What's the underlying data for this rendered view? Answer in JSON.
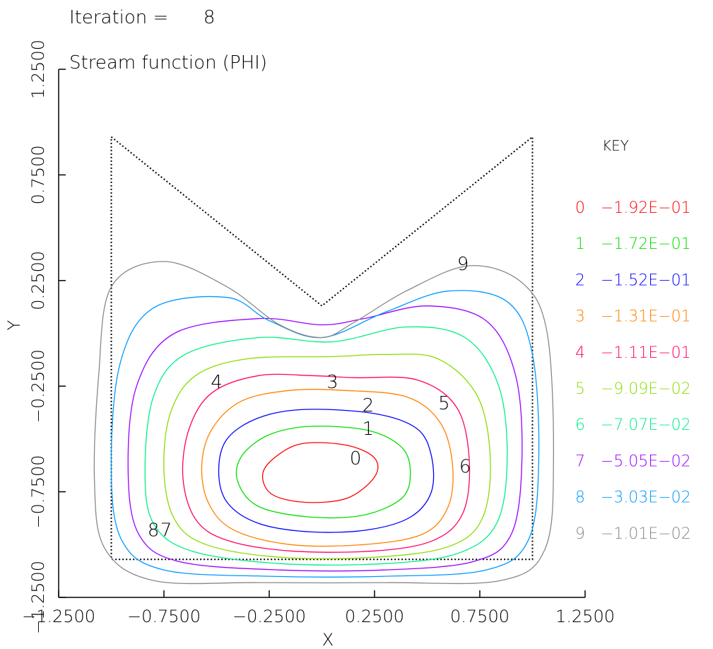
{
  "chart_data": {
    "type": "contour",
    "title": "Iteration =      8",
    "subtitle": "Stream function (PHI)",
    "xlabel": "X",
    "ylabel": "Y",
    "xlim": [
      -1.25,
      1.25
    ],
    "ylim": [
      -1.25,
      1.25
    ],
    "x_ticks": [
      "-1.2500",
      "-0.7500",
      "-0.2500",
      "0.2500",
      "0.7500",
      "1.2500"
    ],
    "y_ticks": [
      "-1.2500",
      "-0.7500",
      "-0.2500",
      "0.2500",
      "0.7500",
      "1.2500"
    ],
    "grid": false,
    "legend_position": "right",
    "key_title": "KEY",
    "boundary": [
      [
        -1.0,
        0.93
      ],
      [
        0.0,
        0.13
      ],
      [
        1.0,
        0.93
      ],
      [
        1.0,
        -1.07
      ],
      [
        -1.0,
        -1.07
      ],
      [
        -1.0,
        0.93
      ]
    ],
    "levels": [
      {
        "label": "0",
        "value": "-1.92E-01",
        "color": "#ff0000"
      },
      {
        "label": "1",
        "value": "-1.72E-01",
        "color": "#00dd00"
      },
      {
        "label": "2",
        "value": "-1.52E-01",
        "color": "#0000ff"
      },
      {
        "label": "3",
        "value": "-1.31E-01",
        "color": "#ff8000"
      },
      {
        "label": "4",
        "value": "-1.11E-01",
        "color": "#ff0066"
      },
      {
        "label": "5",
        "value": "-9.09E-02",
        "color": "#88dd00"
      },
      {
        "label": "6",
        "value": "-7.07E-02",
        "color": "#00ee88"
      },
      {
        "label": "7",
        "value": "-5.05E-02",
        "color": "#9900ff"
      },
      {
        "label": "8",
        "value": "-3.03E-02",
        "color": "#0099ff"
      },
      {
        "label": "9",
        "value": "-1.01E-02",
        "color": "#888888"
      }
    ],
    "contours": [
      {
        "level": "0",
        "points": [
          [
            -0.08,
            -0.52
          ],
          [
            -0.2,
            -0.57
          ],
          [
            -0.28,
            -0.66
          ],
          [
            -0.24,
            -0.76
          ],
          [
            -0.08,
            -0.8
          ],
          [
            0.12,
            -0.78
          ],
          [
            0.25,
            -0.68
          ],
          [
            0.25,
            -0.59
          ],
          [
            0.12,
            -0.53
          ],
          [
            -0.08,
            -0.52
          ]
        ]
      },
      {
        "level": "1",
        "points": [
          [
            -0.05,
            -0.44
          ],
          [
            -0.25,
            -0.48
          ],
          [
            -0.38,
            -0.58
          ],
          [
            -0.4,
            -0.7
          ],
          [
            -0.3,
            -0.82
          ],
          [
            -0.05,
            -0.87
          ],
          [
            0.2,
            -0.86
          ],
          [
            0.38,
            -0.78
          ],
          [
            0.42,
            -0.66
          ],
          [
            0.38,
            -0.54
          ],
          [
            0.22,
            -0.46
          ],
          [
            -0.05,
            -0.44
          ]
        ]
      },
      {
        "level": "2",
        "points": [
          [
            -0.08,
            -0.36
          ],
          [
            -0.3,
            -0.4
          ],
          [
            -0.45,
            -0.5
          ],
          [
            -0.49,
            -0.65
          ],
          [
            -0.45,
            -0.8
          ],
          [
            -0.3,
            -0.9
          ],
          [
            -0.05,
            -0.94
          ],
          [
            0.22,
            -0.93
          ],
          [
            0.42,
            -0.87
          ],
          [
            0.52,
            -0.75
          ],
          [
            0.52,
            -0.58
          ],
          [
            0.45,
            -0.45
          ],
          [
            0.25,
            -0.38
          ],
          [
            -0.08,
            -0.36
          ]
        ]
      },
      {
        "level": "3",
        "points": [
          [
            -0.15,
            -0.27
          ],
          [
            -0.38,
            -0.32
          ],
          [
            -0.52,
            -0.45
          ],
          [
            -0.57,
            -0.62
          ],
          [
            -0.54,
            -0.8
          ],
          [
            -0.42,
            -0.93
          ],
          [
            -0.15,
            -1.0
          ],
          [
            0.2,
            -1.0
          ],
          [
            0.48,
            -0.95
          ],
          [
            0.6,
            -0.82
          ],
          [
            0.62,
            -0.62
          ],
          [
            0.56,
            -0.42
          ],
          [
            0.4,
            -0.3
          ],
          [
            0.1,
            -0.27
          ],
          [
            -0.15,
            -0.27
          ]
        ]
      },
      {
        "level": "4",
        "points": [
          [
            -0.3,
            -0.2
          ],
          [
            -0.52,
            -0.28
          ],
          [
            -0.63,
            -0.45
          ],
          [
            -0.66,
            -0.68
          ],
          [
            -0.6,
            -0.88
          ],
          [
            -0.45,
            -0.98
          ],
          [
            -0.15,
            -1.03
          ],
          [
            0.25,
            -1.03
          ],
          [
            0.53,
            -0.98
          ],
          [
            0.67,
            -0.85
          ],
          [
            0.7,
            -0.6
          ],
          [
            0.64,
            -0.35
          ],
          [
            0.45,
            -0.22
          ],
          [
            0.15,
            -0.21
          ],
          [
            -0.05,
            -0.2
          ],
          [
            -0.3,
            -0.2
          ]
        ]
      },
      {
        "level": "5",
        "points": [
          [
            -0.35,
            -0.12
          ],
          [
            -0.6,
            -0.2
          ],
          [
            -0.72,
            -0.38
          ],
          [
            -0.75,
            -0.65
          ],
          [
            -0.7,
            -0.88
          ],
          [
            -0.55,
            -1.0
          ],
          [
            -0.2,
            -1.06
          ],
          [
            0.25,
            -1.06
          ],
          [
            0.6,
            -1.01
          ],
          [
            0.76,
            -0.88
          ],
          [
            0.8,
            -0.6
          ],
          [
            0.74,
            -0.3
          ],
          [
            0.55,
            -0.12
          ],
          [
            0.3,
            -0.1
          ],
          [
            0.05,
            -0.11
          ],
          [
            -0.35,
            -0.12
          ]
        ]
      },
      {
        "level": "6",
        "points": [
          [
            -0.3,
            -0.02
          ],
          [
            -0.65,
            -0.1
          ],
          [
            -0.8,
            -0.3
          ],
          [
            -0.84,
            -0.65
          ],
          [
            -0.8,
            -0.9
          ],
          [
            -0.62,
            -1.03
          ],
          [
            -0.2,
            -1.09
          ],
          [
            0.3,
            -1.09
          ],
          [
            0.65,
            -1.04
          ],
          [
            0.83,
            -0.9
          ],
          [
            0.88,
            -0.6
          ],
          [
            0.84,
            -0.25
          ],
          [
            0.68,
            -0.02
          ],
          [
            0.4,
            0.03
          ],
          [
            0.05,
            -0.04
          ],
          [
            -0.3,
            -0.02
          ]
        ]
      },
      {
        "level": "7",
        "points": [
          [
            -0.3,
            0.07
          ],
          [
            -0.7,
            0.0
          ],
          [
            -0.88,
            -0.25
          ],
          [
            -0.92,
            -0.65
          ],
          [
            -0.87,
            -0.95
          ],
          [
            -0.68,
            -1.08
          ],
          [
            -0.2,
            -1.12
          ],
          [
            0.3,
            -1.12
          ],
          [
            0.72,
            -1.08
          ],
          [
            0.9,
            -0.95
          ],
          [
            0.95,
            -0.6
          ],
          [
            0.92,
            -0.2
          ],
          [
            0.78,
            0.06
          ],
          [
            0.5,
            0.13
          ],
          [
            0.2,
            0.07
          ],
          [
            0.0,
            0.04
          ],
          [
            -0.3,
            0.07
          ]
        ]
      },
      {
        "level": "8",
        "points": [
          [
            -0.45,
            0.17
          ],
          [
            -0.8,
            0.12
          ],
          [
            -0.96,
            -0.15
          ],
          [
            -1.0,
            -0.65
          ],
          [
            -0.95,
            -0.98
          ],
          [
            -0.75,
            -1.12
          ],
          [
            -0.25,
            -1.15
          ],
          [
            0.3,
            -1.15
          ],
          [
            0.78,
            -1.12
          ],
          [
            0.98,
            -0.98
          ],
          [
            1.03,
            -0.6
          ],
          [
            1.0,
            -0.1
          ],
          [
            0.88,
            0.15
          ],
          [
            0.6,
            0.2
          ],
          [
            0.3,
            0.1
          ],
          [
            0.0,
            -0.02
          ],
          [
            -0.25,
            0.06
          ],
          [
            -0.45,
            0.17
          ]
        ]
      },
      {
        "level": "9",
        "points": [
          [
            -0.75,
            0.34
          ],
          [
            -1.0,
            0.22
          ],
          [
            -1.06,
            -0.2
          ],
          [
            -1.08,
            -0.7
          ],
          [
            -1.03,
            -1.02
          ],
          [
            -0.8,
            -1.17
          ],
          [
            -0.3,
            -1.18
          ],
          [
            0.3,
            -1.18
          ],
          [
            0.85,
            -1.17
          ],
          [
            1.06,
            -1.02
          ],
          [
            1.1,
            -0.6
          ],
          [
            1.07,
            0.0
          ],
          [
            0.95,
            0.24
          ],
          [
            0.7,
            0.32
          ],
          [
            0.4,
            0.2
          ],
          [
            0.15,
            0.05
          ],
          [
            0.0,
            -0.02
          ],
          [
            -0.2,
            0.04
          ],
          [
            -0.45,
            0.22
          ],
          [
            -0.75,
            0.34
          ]
        ]
      }
    ],
    "contour_labels": [
      {
        "level": "0",
        "x": 0.16,
        "y": -0.62
      },
      {
        "level": "1",
        "x": 0.22,
        "y": -0.48
      },
      {
        "level": "2",
        "x": 0.22,
        "y": -0.37
      },
      {
        "level": "3",
        "x": 0.05,
        "y": -0.26
      },
      {
        "level": "4",
        "x": -0.5,
        "y": -0.26
      },
      {
        "level": "5",
        "x": 0.58,
        "y": -0.36
      },
      {
        "level": "6",
        "x": 0.68,
        "y": -0.66
      },
      {
        "level": "7",
        "x": -0.74,
        "y": -0.96
      },
      {
        "level": "8",
        "x": -0.8,
        "y": -0.96
      },
      {
        "level": "9",
        "x": 0.67,
        "y": 0.3
      }
    ]
  }
}
